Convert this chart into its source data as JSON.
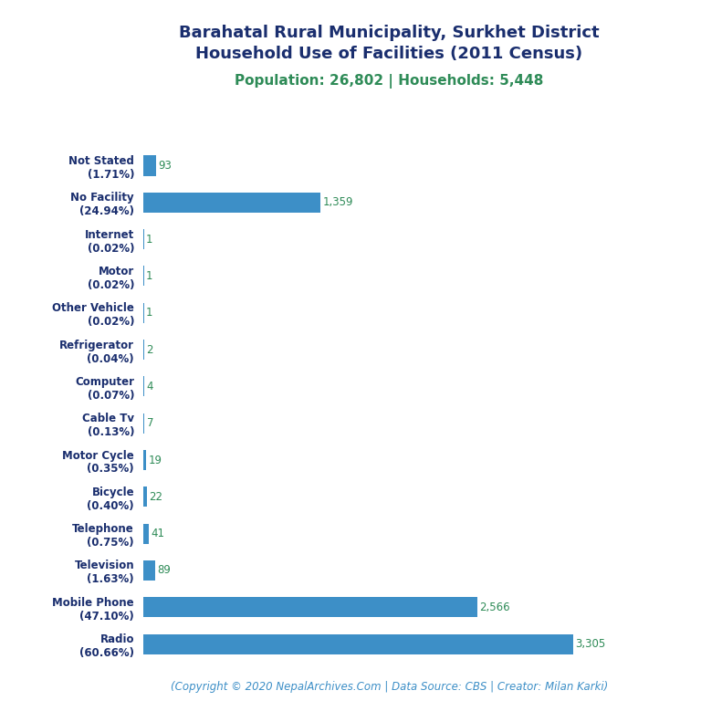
{
  "title_line1": "Barahatal Rural Municipality, Surkhet District",
  "title_line2": "Household Use of Facilities (2011 Census)",
  "subtitle": "Population: 26,802 | Households: 5,448",
  "categories": [
    "Radio\n(60.66%)",
    "Mobile Phone\n(47.10%)",
    "Television\n(1.63%)",
    "Telephone\n(0.75%)",
    "Bicycle\n(0.40%)",
    "Motor Cycle\n(0.35%)",
    "Cable Tv\n(0.13%)",
    "Computer\n(0.07%)",
    "Refrigerator\n(0.04%)",
    "Other Vehicle\n(0.02%)",
    "Motor\n(0.02%)",
    "Internet\n(0.02%)",
    "No Facility\n(24.94%)",
    "Not Stated\n(1.71%)"
  ],
  "values": [
    3305,
    2566,
    89,
    41,
    22,
    19,
    7,
    4,
    2,
    1,
    1,
    1,
    1359,
    93
  ],
  "bar_color": "#3d8fc7",
  "title_color": "#1a2e6e",
  "subtitle_color": "#2e8b57",
  "label_color": "#1a2e6e",
  "value_color": "#2e8b57",
  "footer_color": "#3d8fc7",
  "footer_text": "(Copyright © 2020 NepalArchives.Com | Data Source: CBS | Creator: Milan Karki)",
  "background_color": "#ffffff",
  "title_fontsize": 13,
  "subtitle_fontsize": 11,
  "label_fontsize": 8.5,
  "value_fontsize": 8.5,
  "footer_fontsize": 8.5
}
